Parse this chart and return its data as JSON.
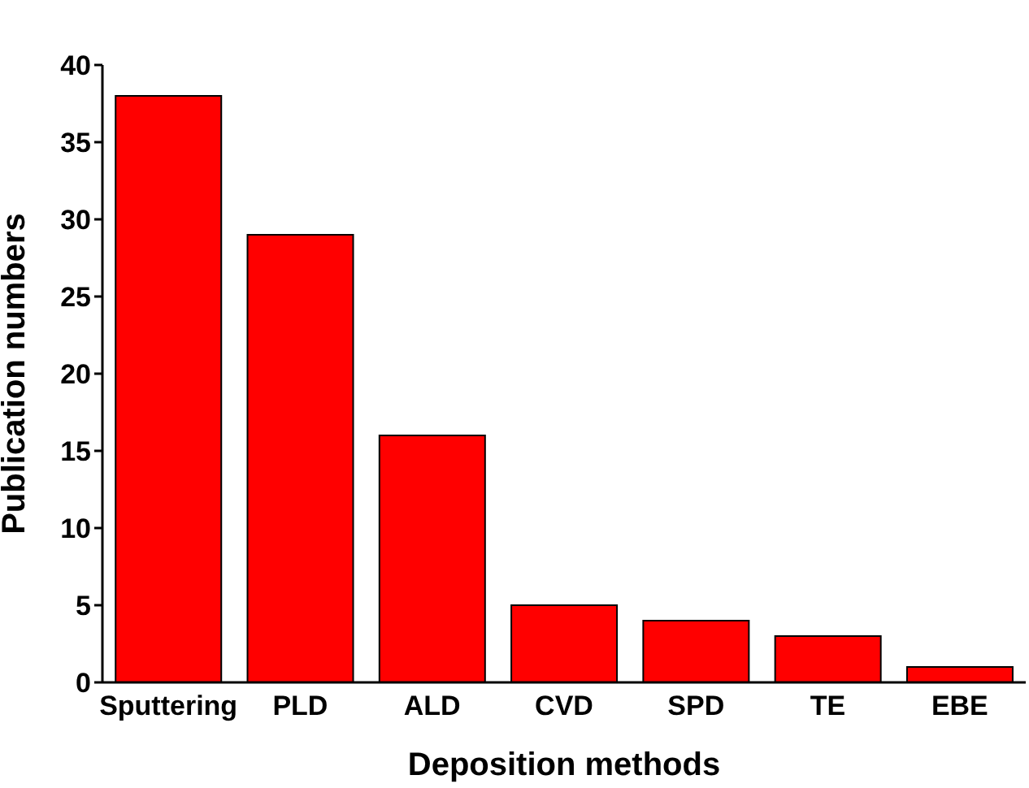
{
  "chart_data": {
    "type": "bar",
    "xlabel": "Deposition methods",
    "ylabel": "Publication numbers",
    "categories": [
      "Sputtering",
      "PLD",
      "ALD",
      "CVD",
      "SPD",
      "TE",
      "EBE"
    ],
    "values": [
      38,
      29,
      16,
      5,
      4,
      3,
      1
    ],
    "color": "#ff0000",
    "ylim": [
      0,
      40
    ],
    "yticks": [
      0,
      5,
      10,
      15,
      20,
      25,
      30,
      35,
      40
    ],
    "grid": false
  }
}
